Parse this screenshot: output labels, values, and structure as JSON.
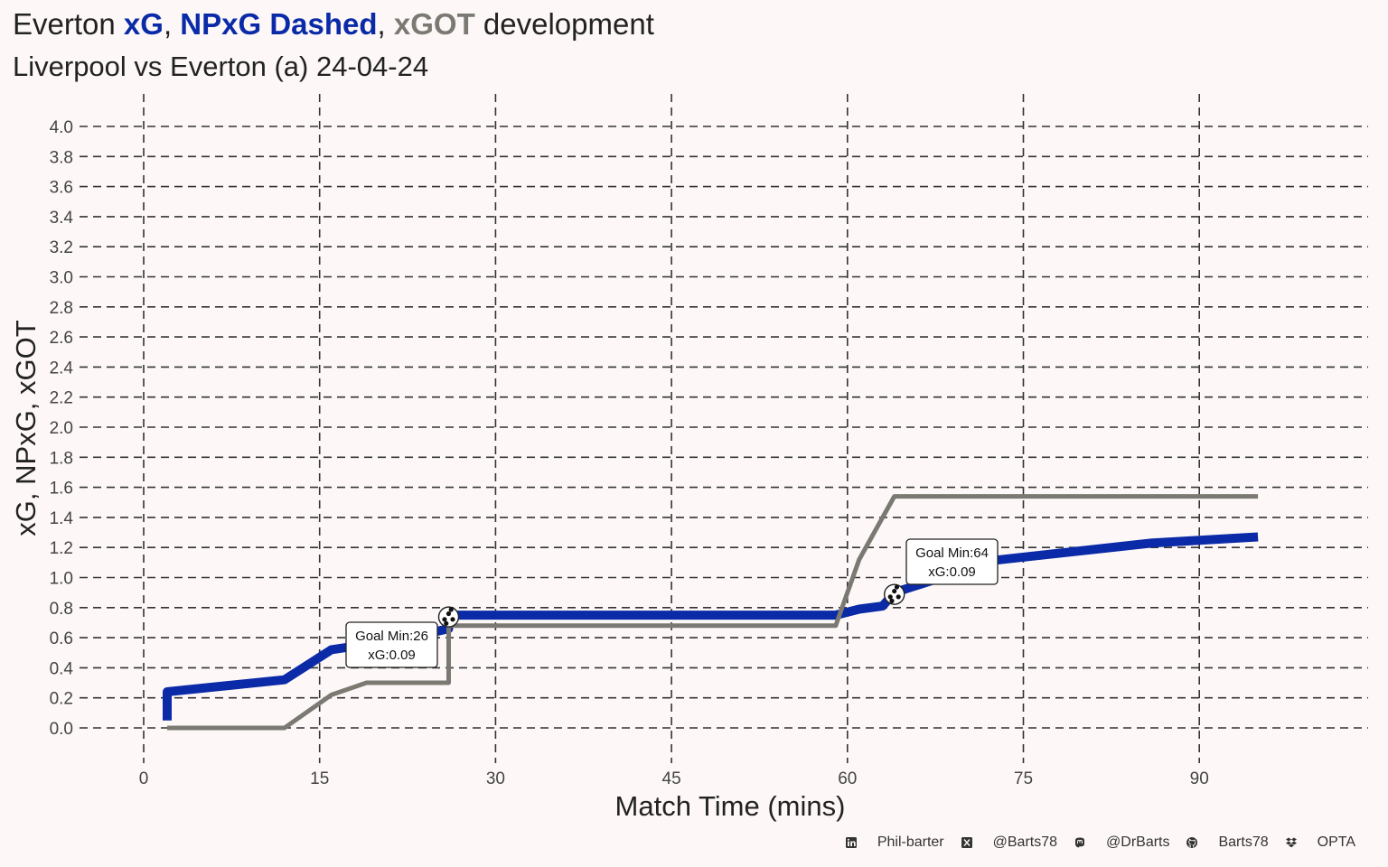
{
  "title": {
    "prefix": "Everton ",
    "xg": "xG",
    "sep1": ", ",
    "npxg": "NPxG Dashed",
    "sep2": ", ",
    "xgot": "xGOT",
    "suffix": " development"
  },
  "subtitle": "Liverpool vs Everton (a) 24-04-24",
  "colors": {
    "background": "#fdf8f7",
    "xg": "#0a2aa8",
    "xgot": "#7a7a72",
    "grid": "#333333"
  },
  "chart_data": {
    "type": "line",
    "xlabel": "Match Time (mins)",
    "ylabel": "xG, NPxG, xGOT",
    "xlim": [
      0,
      95
    ],
    "ylim": [
      0,
      4.0
    ],
    "x_ticks": [
      "0",
      "15",
      "30",
      "45",
      "60",
      "75",
      "90"
    ],
    "y_ticks": [
      "0.0",
      "0.2",
      "0.4",
      "0.6",
      "0.8",
      "1.0",
      "1.2",
      "1.4",
      "1.6",
      "1.8",
      "2.0",
      "2.2",
      "2.4",
      "2.6",
      "2.8",
      "3.0",
      "3.2",
      "3.4",
      "3.6",
      "3.8",
      "4.0"
    ],
    "grid": true,
    "series": [
      {
        "name": "xG",
        "color": "#0a2aa8",
        "points": [
          [
            2,
            0.05
          ],
          [
            2,
            0.24
          ],
          [
            12,
            0.32
          ],
          [
            16,
            0.52
          ],
          [
            22,
            0.59
          ],
          [
            26,
            0.66
          ],
          [
            26,
            0.75
          ],
          [
            59,
            0.75
          ],
          [
            61,
            0.79
          ],
          [
            63,
            0.81
          ],
          [
            64,
            0.9
          ],
          [
            68,
            1.0
          ],
          [
            72,
            1.11
          ],
          [
            86,
            1.23
          ],
          [
            95,
            1.27
          ]
        ]
      },
      {
        "name": "xGOT",
        "color": "#7a7a72",
        "points": [
          [
            2,
            0.0
          ],
          [
            12,
            0.0
          ],
          [
            16,
            0.22
          ],
          [
            19,
            0.3
          ],
          [
            26,
            0.3
          ],
          [
            26,
            0.68
          ],
          [
            59,
            0.68
          ],
          [
            61,
            1.12
          ],
          [
            64,
            1.54
          ],
          [
            95,
            1.54
          ]
        ]
      }
    ],
    "annotations": [
      {
        "minute": 26,
        "xg_value": 0.75,
        "label_line1": "Goal Min:26",
        "label_line2": "xG:0.09"
      },
      {
        "minute": 64,
        "xg_value": 0.9,
        "label_line1": "Goal Min:64",
        "label_line2": "xG:0.09"
      }
    ]
  },
  "footer": [
    {
      "icon": "linkedin-icon",
      "text": "Phil-barter"
    },
    {
      "icon": "x-twitter-icon",
      "text": "@Barts78"
    },
    {
      "icon": "mastodon-icon",
      "text": "@DrBarts"
    },
    {
      "icon": "github-icon",
      "text": "Barts78"
    },
    {
      "icon": "dropbox-icon",
      "text": "OPTA"
    }
  ]
}
